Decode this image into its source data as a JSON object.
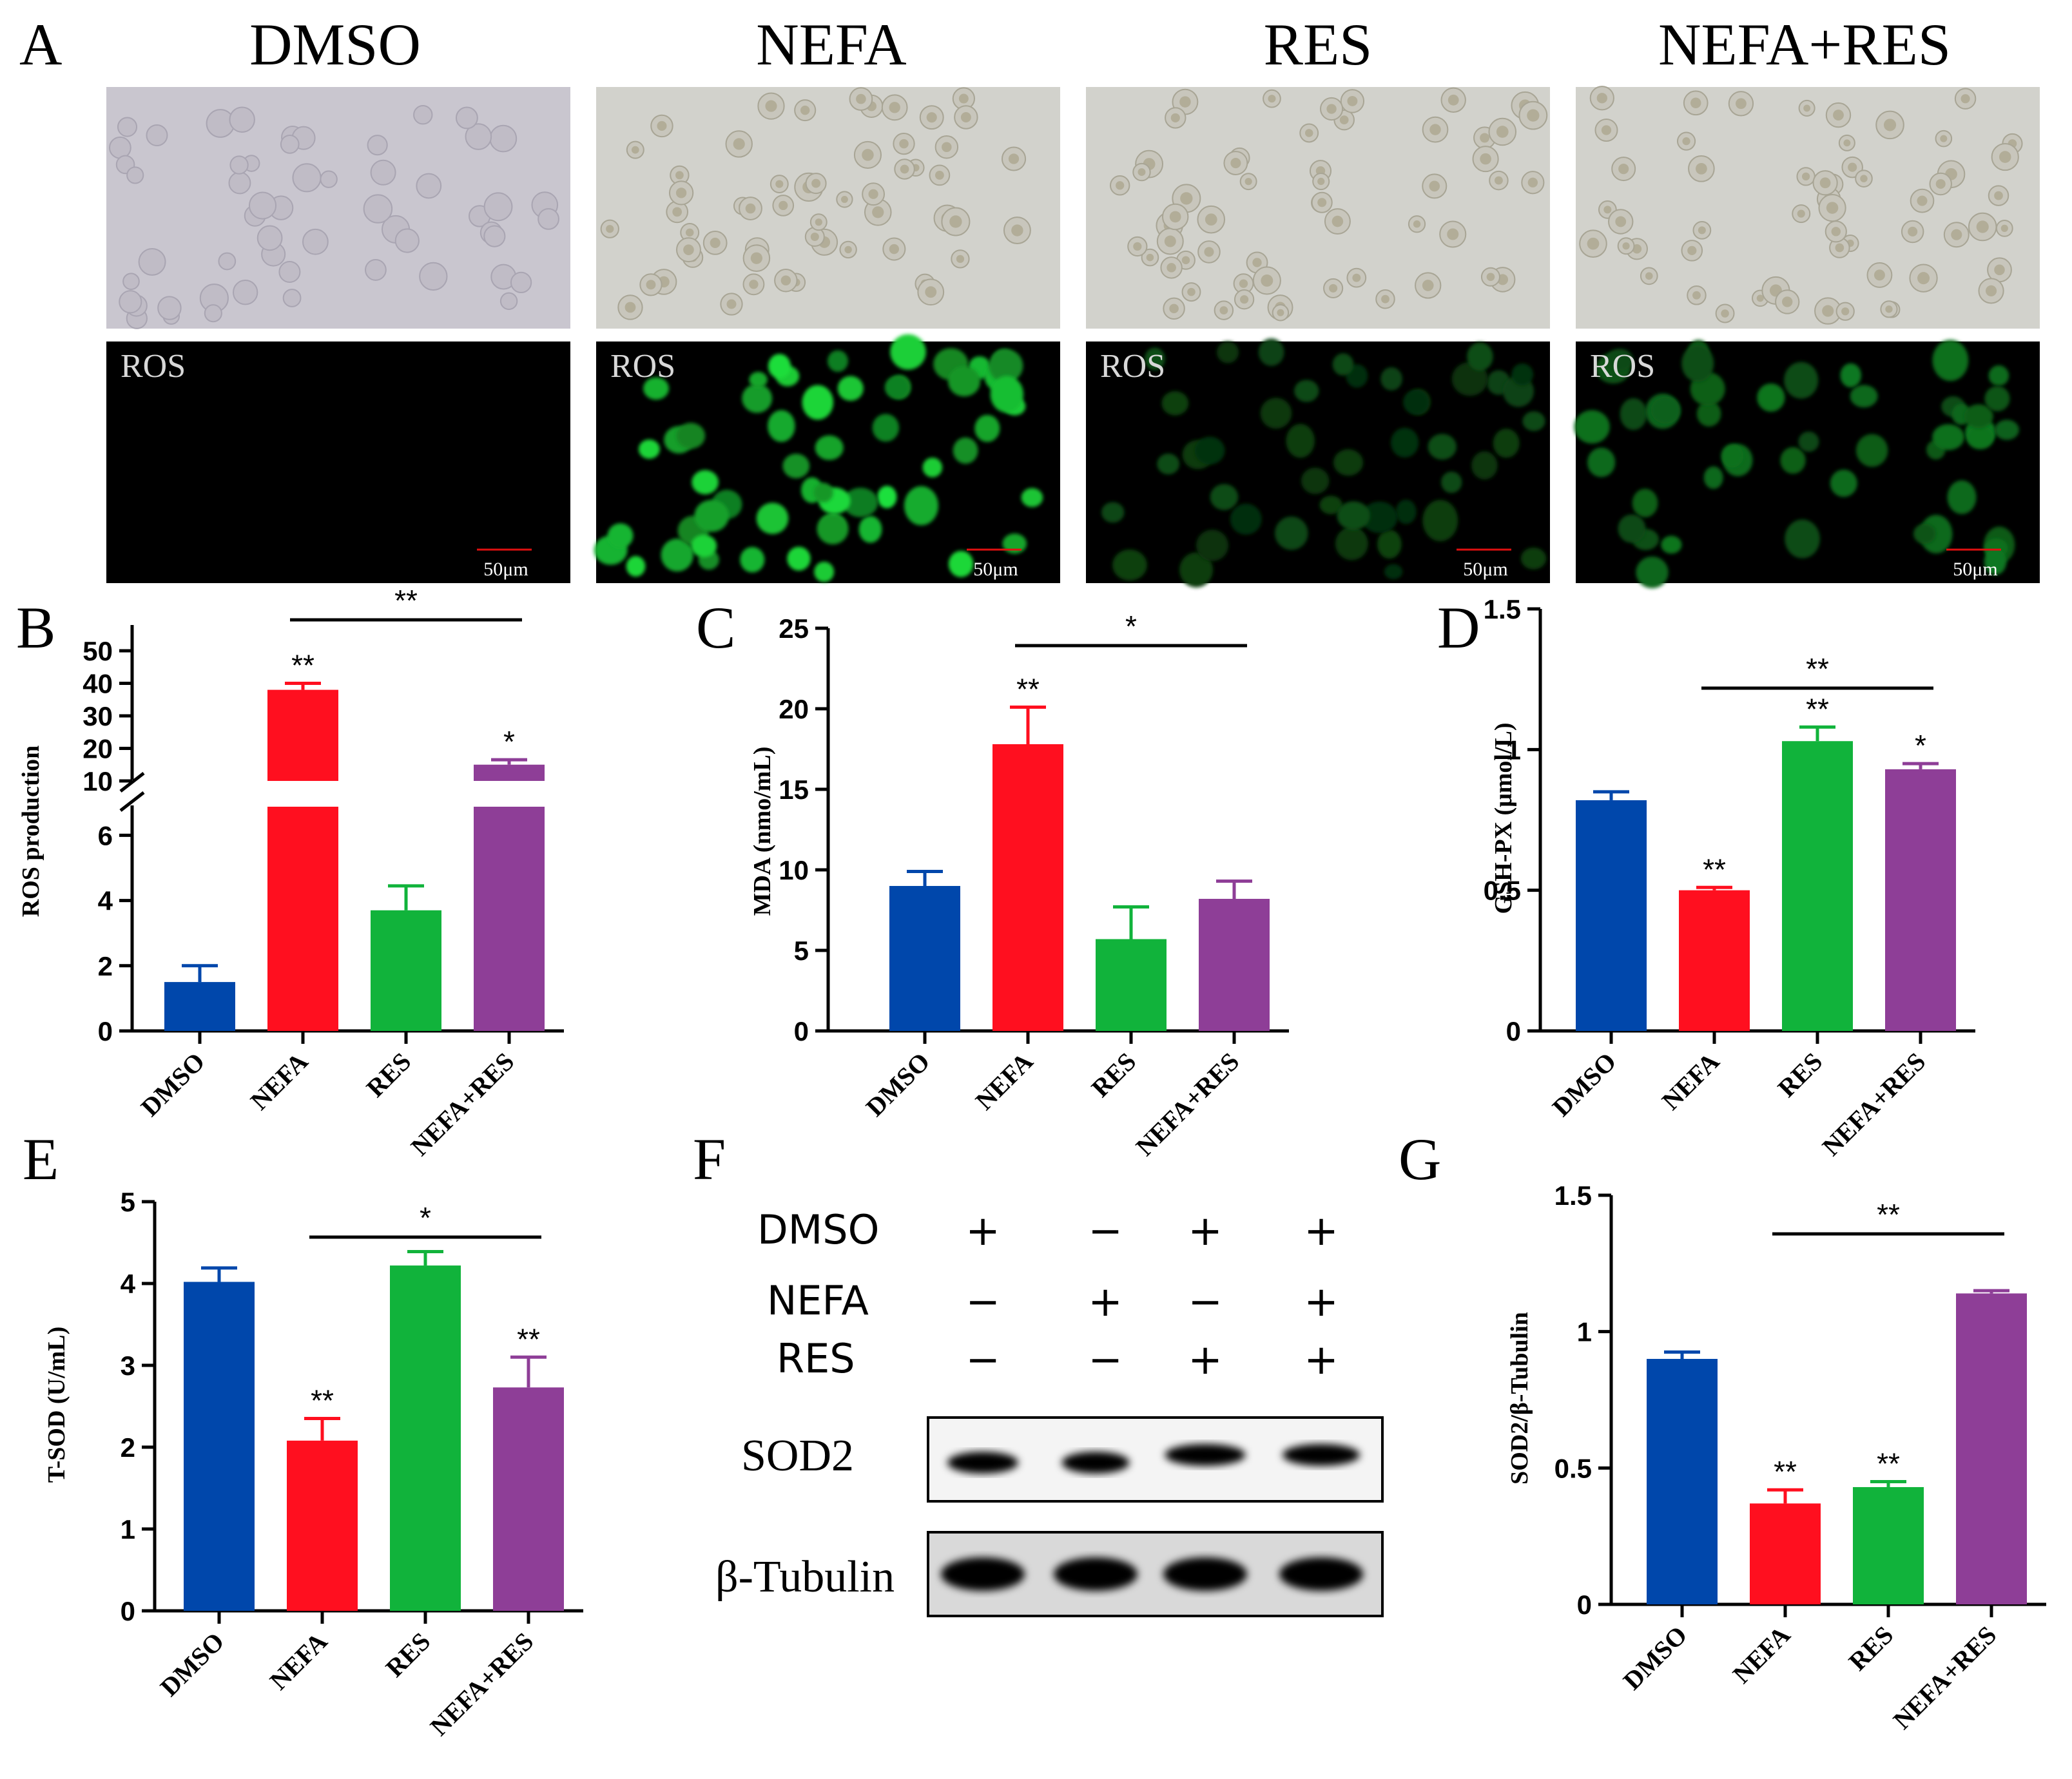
{
  "panel_letters": [
    "A",
    "B",
    "C",
    "D",
    "E",
    "F",
    "G"
  ],
  "groups": [
    "DMSO",
    "NEFA",
    "RES",
    "NEFA+RES"
  ],
  "colors": {
    "DMSO": "#0047AB",
    "NEFA": "#FF0F1F",
    "RES": "#11B33B",
    "NEFA+RES": "#8E3E97"
  },
  "panel_a": {
    "columns": [
      "DMSO",
      "NEFA",
      "RES",
      "NEFA+RES"
    ],
    "fluor_label": "ROS",
    "scale_bar": "50μm"
  },
  "panel_f": {
    "rows": [
      {
        "label": "DMSO",
        "signs": [
          "+",
          "−",
          "+",
          "+"
        ]
      },
      {
        "label": "NEFA",
        "signs": [
          "−",
          "+",
          "−",
          "+"
        ]
      },
      {
        "label": "RES",
        "signs": [
          "−",
          "−",
          "+",
          "+"
        ]
      }
    ],
    "blots": [
      "SOD2",
      "β-Tubulin"
    ]
  },
  "chart_data": [
    {
      "panel": "B",
      "type": "bar",
      "ylabel": "ROS production",
      "categories": [
        "DMSO",
        "NEFA",
        "RES",
        "NEFA+RES"
      ],
      "values": [
        1.5,
        38,
        3.7,
        15
      ],
      "errors": [
        0.5,
        2,
        0.75,
        1.5
      ],
      "broken_axis": true,
      "ticks_lower": [
        0,
        2,
        4,
        6
      ],
      "ticks_upper": [
        10,
        20,
        30,
        40,
        50
      ],
      "bar_sig": [
        "",
        "**",
        "",
        "*"
      ],
      "bracket": {
        "from": "NEFA",
        "to": "NEFA+RES",
        "label": "**"
      }
    },
    {
      "panel": "C",
      "type": "bar",
      "ylabel": "MDA (nmo/mL)",
      "categories": [
        "DMSO",
        "NEFA",
        "RES",
        "NEFA+RES"
      ],
      "values": [
        9,
        17.8,
        5.7,
        8.2
      ],
      "errors": [
        0.9,
        2.3,
        2.0,
        1.1
      ],
      "ylim": [
        0,
        25
      ],
      "ticks": [
        0,
        5,
        10,
        15,
        20,
        25
      ],
      "bar_sig": [
        "",
        "**",
        "",
        ""
      ],
      "bracket": {
        "from": "NEFA",
        "to": "NEFA+RES",
        "label": "*"
      }
    },
    {
      "panel": "D",
      "type": "bar",
      "ylabel": "GSH-PX (μmol/L)",
      "categories": [
        "DMSO",
        "NEFA",
        "RES",
        "NEFA+RES"
      ],
      "values": [
        0.82,
        0.5,
        1.03,
        0.93
      ],
      "errors": [
        0.03,
        0.01,
        0.05,
        0.02
      ],
      "ylim": [
        0,
        1.5
      ],
      "ticks": [
        0.0,
        0.5,
        1.0,
        1.5
      ],
      "bar_sig": [
        "",
        "**",
        "**",
        "*"
      ],
      "bracket": {
        "from": "NEFA",
        "to": "NEFA+RES",
        "label": "**"
      }
    },
    {
      "panel": "E",
      "type": "bar",
      "ylabel": "T-SOD (U/mL)",
      "categories": [
        "DMSO",
        "NEFA",
        "RES",
        "NEFA+RES"
      ],
      "values": [
        4.02,
        2.08,
        4.22,
        2.73
      ],
      "errors": [
        0.17,
        0.27,
        0.17,
        0.37
      ],
      "ylim": [
        0,
        5
      ],
      "ticks": [
        0,
        1,
        2,
        3,
        4,
        5
      ],
      "bar_sig": [
        "",
        "**",
        "",
        "**"
      ],
      "bracket": {
        "from": "NEFA",
        "to": "NEFA+RES",
        "label": "*"
      }
    },
    {
      "panel": "G",
      "type": "bar",
      "ylabel": "SOD2/β-Tubulin",
      "categories": [
        "DMSO",
        "NEFA",
        "RES",
        "NEFA+RES"
      ],
      "values": [
        0.9,
        0.37,
        0.43,
        1.14
      ],
      "errors": [
        0.025,
        0.05,
        0.02,
        0.01
      ],
      "ylim": [
        0,
        1.5
      ],
      "ticks": [
        0.0,
        0.5,
        1.0,
        1.5
      ],
      "bar_sig": [
        "",
        "**",
        "**",
        ""
      ],
      "bracket": {
        "from": "NEFA",
        "to": "NEFA+RES",
        "label": "**"
      }
    }
  ]
}
